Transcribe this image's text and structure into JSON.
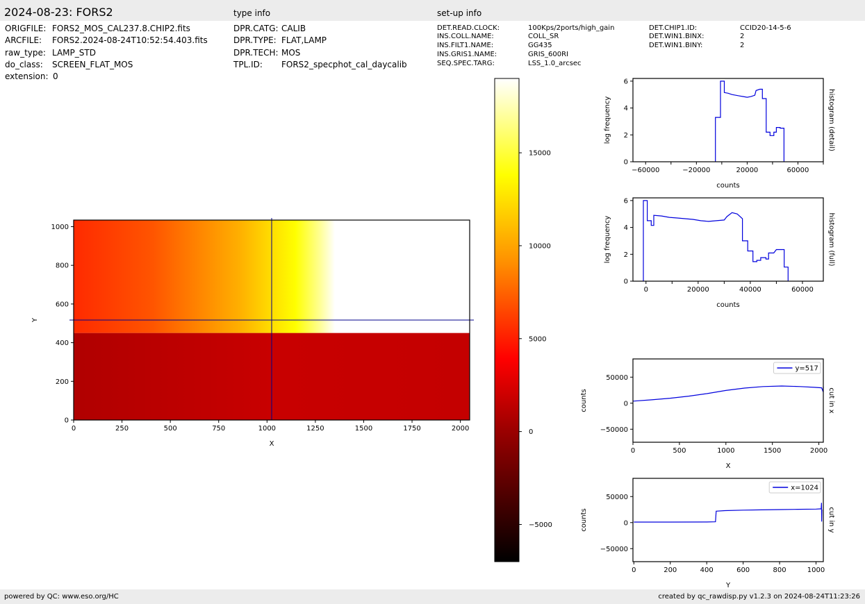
{
  "header": {
    "title": "2024-08-23: FORS2",
    "type_info_heading": "type info",
    "setup_info_heading": "set-up info"
  },
  "file_info": [
    {
      "key": "ORIGFILE:",
      "value": "FORS2_MOS_CAL237.8.CHIP2.fits"
    },
    {
      "key": "ARCFILE:",
      "value": "FORS2.2024-08-24T10:52:54.403.fits"
    },
    {
      "key": "raw_type:",
      "value": "LAMP_STD"
    },
    {
      "key": "do_class:",
      "value": "SCREEN_FLAT_MOS"
    },
    {
      "key": "extension:",
      "value": "0"
    }
  ],
  "type_info": [
    {
      "key": "DPR.CATG:",
      "value": "CALIB"
    },
    {
      "key": "DPR.TYPE:",
      "value": "FLAT,LAMP"
    },
    {
      "key": "DPR.TECH:",
      "value": "MOS"
    },
    {
      "key": "TPL.ID:",
      "value": "FORS2_specphot_cal_daycalib"
    }
  ],
  "setup_info_col1": [
    {
      "key": "DET.READ.CLOCK:",
      "value": "100Kps/2ports/high_gain"
    },
    {
      "key": "INS.COLL.NAME:",
      "value": "COLL_SR"
    },
    {
      "key": "INS.FILT1.NAME:",
      "value": "GG435"
    },
    {
      "key": "INS.GRIS1.NAME:",
      "value": "GRIS_600RI"
    },
    {
      "key": "SEQ.SPEC.TARG:",
      "value": "LSS_1.0_arcsec"
    }
  ],
  "setup_info_col2": [
    {
      "key": "DET.CHIP1.ID:",
      "value": "CCID20-14-5-6"
    },
    {
      "key": "DET.WIN1.BINX:",
      "value": "2"
    },
    {
      "key": "DET.WIN1.BINY:",
      "value": "2"
    }
  ],
  "footer": {
    "left": "powered by QC: www.eso.org/HC",
    "right": "created by qc_rawdisp.py v1.2.3 on 2024-08-24T11:23:26"
  },
  "colors": {
    "bar_bg": "#ececec",
    "line": "#0000dd",
    "cross": "#00008b",
    "flat_low": "#bf0000",
    "flat_high_start": "#ff2a00",
    "saturated": "#ffffff"
  },
  "chart_data": [
    {
      "type": "heatmap",
      "name": "image",
      "xlabel": "X",
      "ylabel": "Y",
      "xlim": [
        0,
        2048
      ],
      "ylim": [
        0,
        1034
      ],
      "xticks": [
        0,
        250,
        500,
        750,
        1000,
        1250,
        1500,
        1750,
        2000
      ],
      "yticks": [
        0,
        200,
        400,
        600,
        800,
        1000
      ],
      "cut_x": 1024,
      "cut_y": 517,
      "lower_region_value": 1000,
      "region_boundary_y": 450,
      "colormap": "hot",
      "colorbar_range": [
        -7000,
        19000
      ],
      "colorbar_ticks": [
        -5000,
        0,
        5000,
        10000,
        15000
      ]
    },
    {
      "type": "line",
      "name": "histogram (detail)",
      "xlabel": "counts",
      "ylabel": "log frequency",
      "side_label": "histogram (detail)",
      "xlim": [
        -70000,
        80000
      ],
      "ylim": [
        0,
        6.2
      ],
      "xticks": [
        -60000,
        -20000,
        20000,
        60000
      ],
      "yticks": [
        0,
        2,
        4,
        6
      ],
      "steps": [
        [
          -5000,
          0
        ],
        [
          -5000,
          3.3
        ],
        [
          -1000,
          3.3
        ],
        [
          -1000,
          6.0
        ],
        [
          2000,
          6.0
        ],
        [
          2000,
          5.15
        ],
        [
          5000,
          5.1
        ],
        [
          8000,
          5.0
        ],
        [
          11000,
          4.95
        ],
        [
          14000,
          4.9
        ],
        [
          17000,
          4.85
        ],
        [
          20000,
          4.8
        ],
        [
          23000,
          4.85
        ],
        [
          26000,
          4.95
        ],
        [
          27000,
          5.3
        ],
        [
          30000,
          5.4
        ],
        [
          32000,
          5.4
        ],
        [
          32000,
          4.7
        ],
        [
          35000,
          4.7
        ],
        [
          35000,
          2.2
        ],
        [
          38000,
          2.2
        ],
        [
          38000,
          1.95
        ],
        [
          41000,
          1.95
        ],
        [
          41000,
          2.2
        ],
        [
          43000,
          2.2
        ],
        [
          43000,
          2.55
        ],
        [
          46000,
          2.55
        ],
        [
          46000,
          2.5
        ],
        [
          49000,
          2.5
        ],
        [
          49000,
          0
        ]
      ]
    },
    {
      "type": "line",
      "name": "histogram (full)",
      "xlabel": "counts",
      "ylabel": "log frequency",
      "side_label": "histogram (full)",
      "xlim": [
        -5000,
        68000
      ],
      "ylim": [
        0,
        6.2
      ],
      "xticks": [
        0,
        20000,
        40000,
        60000
      ],
      "yticks": [
        0,
        2,
        4,
        6
      ],
      "steps": [
        [
          -1000,
          0
        ],
        [
          -1000,
          6.0
        ],
        [
          500,
          6.0
        ],
        [
          500,
          4.5
        ],
        [
          2000,
          4.5
        ],
        [
          2000,
          4.15
        ],
        [
          3000,
          4.15
        ],
        [
          3000,
          4.9
        ],
        [
          6000,
          4.85
        ],
        [
          9000,
          4.75
        ],
        [
          12000,
          4.7
        ],
        [
          15000,
          4.65
        ],
        [
          18000,
          4.6
        ],
        [
          21000,
          4.5
        ],
        [
          24000,
          4.45
        ],
        [
          27000,
          4.5
        ],
        [
          30000,
          4.55
        ],
        [
          31000,
          4.8
        ],
        [
          33000,
          5.1
        ],
        [
          35000,
          5.0
        ],
        [
          37000,
          4.65
        ],
        [
          37000,
          3.0
        ],
        [
          39000,
          3.0
        ],
        [
          39000,
          2.25
        ],
        [
          41000,
          2.25
        ],
        [
          41000,
          1.45
        ],
        [
          42500,
          1.45
        ],
        [
          42500,
          1.55
        ],
        [
          44000,
          1.55
        ],
        [
          44000,
          1.75
        ],
        [
          46000,
          1.75
        ],
        [
          46000,
          1.65
        ],
        [
          47000,
          1.65
        ],
        [
          47000,
          2.1
        ],
        [
          49000,
          2.1
        ],
        [
          50000,
          2.35
        ],
        [
          53000,
          2.35
        ],
        [
          53000,
          1.05
        ],
        [
          54500,
          1.05
        ],
        [
          54500,
          0
        ]
      ]
    },
    {
      "type": "line",
      "name": "cut in x",
      "xlabel": "X",
      "ylabel": "counts",
      "side_label": "cut in x",
      "legend": "y=517",
      "legend_position": "upper right",
      "xlim": [
        0,
        2048
      ],
      "ylim": [
        -75000,
        85000
      ],
      "xticks": [
        0,
        500,
        1000,
        1500,
        2000
      ],
      "yticks": [
        -50000,
        0,
        50000
      ],
      "x": [
        0,
        200,
        400,
        600,
        800,
        1000,
        1200,
        1400,
        1600,
        1800,
        1950,
        2030,
        2046,
        2048
      ],
      "y": [
        4000,
        6500,
        9500,
        13500,
        18500,
        24500,
        29000,
        32000,
        33000,
        32000,
        30500,
        29500,
        22000,
        32000
      ]
    },
    {
      "type": "line",
      "name": "cut in y",
      "xlabel": "Y",
      "ylabel": "counts",
      "side_label": "cut in y",
      "legend": "x=1024",
      "legend_position": "upper right",
      "xlim": [
        -5,
        1040
      ],
      "ylim": [
        -75000,
        85000
      ],
      "xticks": [
        0,
        200,
        400,
        600,
        800,
        1000
      ],
      "yticks": [
        -50000,
        0,
        50000
      ],
      "x": [
        0,
        200,
        400,
        448,
        452,
        500,
        600,
        700,
        800,
        900,
        1000,
        1028,
        1030,
        1031,
        1032
      ],
      "y": [
        1000,
        1000,
        1200,
        1500,
        22000,
        23000,
        24000,
        24500,
        25000,
        25500,
        26000,
        26500,
        38000,
        2000,
        25000
      ]
    }
  ]
}
